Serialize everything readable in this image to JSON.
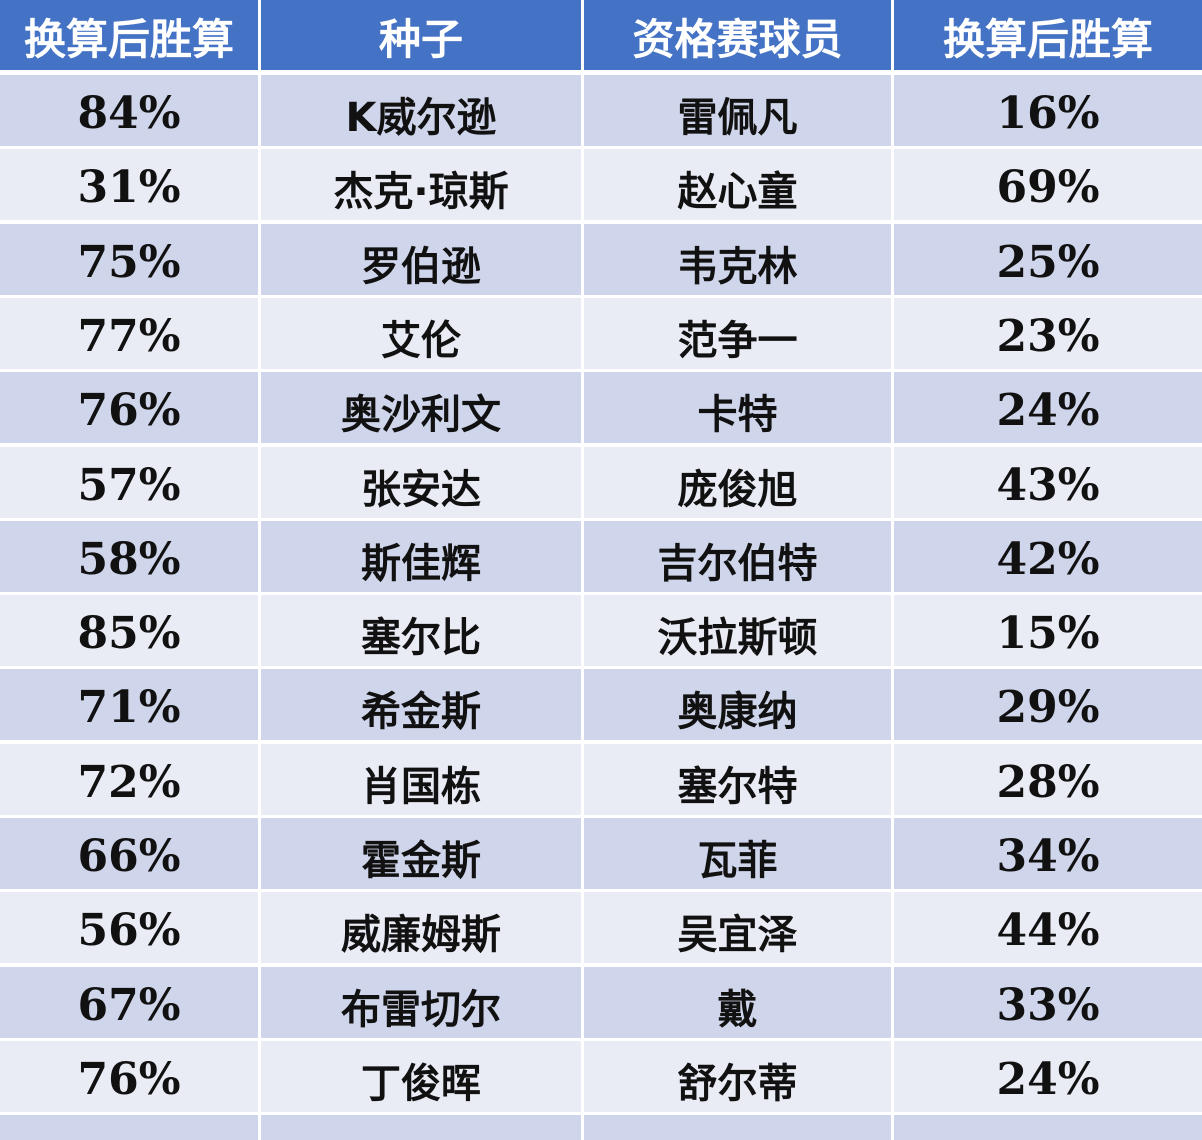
{
  "colors": {
    "header": "#4472c4",
    "row_dark": "#cfd5ea",
    "row_light": "#e9ebf5",
    "text": "#111111",
    "header_text": "#ffffff"
  },
  "table": {
    "headers": [
      "换算后胜算",
      "种子",
      "资格赛球员",
      "换算后胜算"
    ],
    "rows": [
      [
        "84%",
        "K威尔逊",
        "雷佩凡",
        "16%"
      ],
      [
        "31%",
        "杰克·琼斯",
        "赵心童",
        "69%"
      ],
      [
        "75%",
        "罗伯逊",
        "韦克林",
        "25%"
      ],
      [
        "77%",
        "艾伦",
        "范争一",
        "23%"
      ],
      [
        "76%",
        "奥沙利文",
        "卡特",
        "24%"
      ],
      [
        "57%",
        "张安达",
        "庞俊旭",
        "43%"
      ],
      [
        "58%",
        "斯佳辉",
        "吉尔伯特",
        "42%"
      ],
      [
        "85%",
        "塞尔比",
        "沃拉斯顿",
        "15%"
      ],
      [
        "71%",
        "希金斯",
        "奥康纳",
        "29%"
      ],
      [
        "72%",
        "肖国栋",
        "塞尔特",
        "28%"
      ],
      [
        "66%",
        "霍金斯",
        "瓦菲",
        "34%"
      ],
      [
        "56%",
        "威廉姆斯",
        "吴宜泽",
        "44%"
      ],
      [
        "67%",
        "布雷切尔",
        "戴",
        "33%"
      ],
      [
        "76%",
        "丁俊晖",
        "舒尔蒂",
        "24%"
      ],
      [
        "",
        "",
        "",
        ""
      ]
    ]
  }
}
